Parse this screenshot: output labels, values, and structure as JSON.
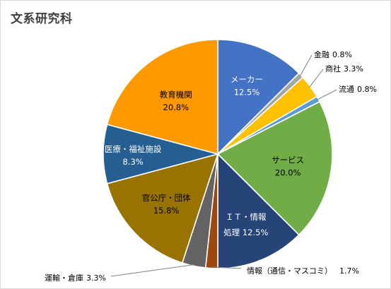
{
  "chart_data": {
    "type": "pie",
    "title": "文系研究科",
    "unit": "%",
    "slices": [
      {
        "label": "メーカー",
        "value": 12.5,
        "value_label": "12.5%",
        "color": "#4472c4"
      },
      {
        "label": "金融",
        "value": 0.8,
        "value_label": "0.8%",
        "color": "#a5a5a5"
      },
      {
        "label": "商社",
        "value": 3.3,
        "value_label": "3.3%",
        "color": "#ffc000"
      },
      {
        "label": "流通",
        "value": 0.8,
        "value_label": "0.8%",
        "color": "#5b9bd5"
      },
      {
        "label": "サービス",
        "value": 20.0,
        "value_label": "20.0%",
        "color": "#70ad47"
      },
      {
        "label": "ＩＴ・情報処理",
        "label_lines": [
          "ＩＴ・情報",
          "処理"
        ],
        "value": 12.5,
        "value_label": "12.5%",
        "color": "#264478"
      },
      {
        "label": "情報（通信・マスコミ）",
        "value": 1.7,
        "value_label": "1.7%",
        "color": "#9e480e"
      },
      {
        "label": "運輸・倉庫",
        "value": 3.3,
        "value_label": "3.3%",
        "color": "#636363"
      },
      {
        "label": "官公庁・団体",
        "value": 15.8,
        "value_label": "15.8%",
        "color": "#997300"
      },
      {
        "label": "医療・福祉施設",
        "value": 8.3,
        "value_label": "8.3%",
        "color": "#255e91"
      },
      {
        "label": "教育機関",
        "value": 20.8,
        "value_label": "20.8%",
        "color": "#ff9900"
      }
    ]
  }
}
